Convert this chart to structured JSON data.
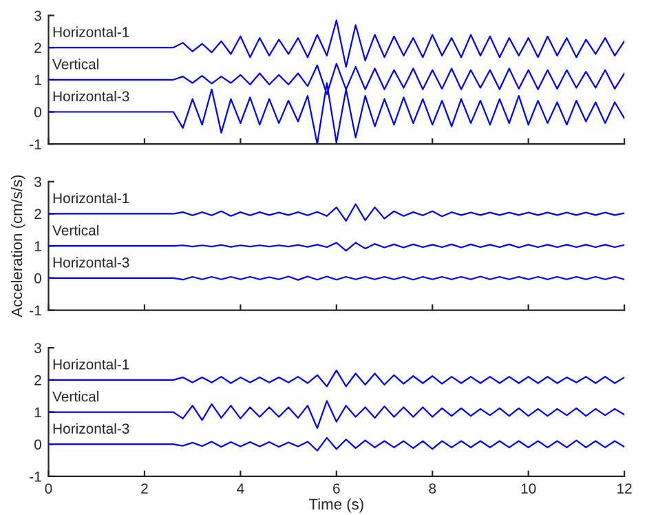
{
  "chart_data": [
    {
      "type": "line",
      "xlim": [
        0,
        12
      ],
      "xticks": [
        0,
        2,
        4,
        6,
        8,
        10,
        12
      ],
      "ylim": [
        -1,
        3
      ],
      "yticks": [
        -1,
        0,
        1,
        2,
        3
      ],
      "tick_labels": "y",
      "grid": false,
      "legend": false,
      "x": [
        0,
        2.6,
        2.8,
        3.0,
        3.2,
        3.4,
        3.6,
        3.8,
        4.0,
        4.2,
        4.4,
        4.6,
        4.8,
        5.0,
        5.2,
        5.4,
        5.6,
        5.8,
        6.0,
        6.2,
        6.4,
        6.6,
        6.8,
        7.0,
        7.2,
        7.4,
        7.6,
        7.8,
        8.0,
        8.2,
        8.4,
        8.6,
        8.8,
        9.0,
        9.2,
        9.4,
        9.6,
        9.8,
        10.0,
        10.2,
        10.4,
        10.6,
        10.8,
        11.0,
        11.2,
        11.4,
        11.6,
        11.8,
        12.0
      ],
      "series": [
        {
          "name": "Horizontal-1",
          "color": "#0000ff",
          "values": [
            2,
            2,
            2.15,
            1.88,
            2.12,
            1.85,
            2.2,
            1.8,
            2.35,
            1.7,
            2.3,
            1.75,
            2.25,
            1.8,
            2.3,
            1.7,
            2.4,
            1.75,
            2.85,
            1.4,
            2.7,
            1.6,
            2.4,
            1.7,
            2.35,
            1.75,
            2.3,
            1.7,
            2.4,
            1.75,
            2.3,
            1.7,
            2.4,
            1.75,
            2.35,
            1.7,
            2.3,
            1.75,
            2.3,
            1.7,
            2.35,
            1.75,
            2.3,
            1.7,
            2.25,
            1.8,
            2.3,
            1.75,
            2.2
          ]
        },
        {
          "name": "Vertical",
          "color": "#0000ff",
          "values": [
            1,
            1,
            1.1,
            0.9,
            1.12,
            0.88,
            1.1,
            0.9,
            1.15,
            0.85,
            1.2,
            0.85,
            1.15,
            0.85,
            1.2,
            0.8,
            1.45,
            0.55,
            1.5,
            0.7,
            1.4,
            0.7,
            1.35,
            0.7,
            1.3,
            0.75,
            1.35,
            0.7,
            1.3,
            0.72,
            1.35,
            0.7,
            1.3,
            0.75,
            1.3,
            0.7,
            1.35,
            0.72,
            1.3,
            0.7,
            1.3,
            0.72,
            1.3,
            0.75,
            1.25,
            0.75,
            1.3,
            0.72,
            1.2
          ]
        },
        {
          "name": "Horizontal-3",
          "color": "#0000ff",
          "values": [
            0,
            0,
            -0.5,
            0.4,
            -0.4,
            0.7,
            -0.65,
            0.4,
            -0.35,
            0.45,
            -0.4,
            0.4,
            -0.35,
            0.35,
            -0.3,
            0.5,
            -1.0,
            0.9,
            -0.95,
            0.7,
            -0.8,
            0.5,
            -0.45,
            0.4,
            -0.4,
            0.45,
            -0.35,
            0.4,
            -0.4,
            0.35,
            -0.45,
            0.4,
            -0.35,
            0.35,
            -0.4,
            0.4,
            -0.35,
            0.5,
            -0.4,
            0.35,
            -0.35,
            0.3,
            -0.4,
            0.35,
            -0.3,
            0.3,
            -0.35,
            0.3,
            -0.2
          ]
        }
      ]
    },
    {
      "type": "line",
      "ylabel": "Acceleration (cm/s/s)",
      "xlim": [
        0,
        12
      ],
      "xticks": [
        0,
        2,
        4,
        6,
        8,
        10,
        12
      ],
      "ylim": [
        -1,
        3
      ],
      "yticks": [
        -1,
        0,
        1,
        2,
        3
      ],
      "tick_labels": "y",
      "grid": false,
      "legend": false,
      "x": [
        0,
        2.6,
        2.8,
        3.0,
        3.2,
        3.4,
        3.6,
        3.8,
        4.0,
        4.2,
        4.4,
        4.6,
        4.8,
        5.0,
        5.2,
        5.4,
        5.6,
        5.8,
        6.0,
        6.2,
        6.4,
        6.6,
        6.8,
        7.0,
        7.2,
        7.4,
        7.6,
        7.8,
        8.0,
        8.2,
        8.4,
        8.6,
        8.8,
        9.0,
        9.2,
        9.4,
        9.6,
        9.8,
        10.0,
        10.2,
        10.4,
        10.6,
        10.8,
        11.0,
        11.2,
        11.4,
        11.6,
        11.8,
        12.0
      ],
      "series": [
        {
          "name": "Horizontal-1",
          "color": "#0000ff",
          "values": [
            2,
            2,
            2.05,
            1.95,
            2.05,
            1.95,
            2.08,
            1.93,
            2.05,
            1.95,
            2.05,
            1.96,
            2.04,
            1.96,
            2.05,
            1.95,
            2.06,
            1.93,
            2.2,
            1.78,
            2.3,
            1.8,
            2.2,
            1.85,
            2.08,
            1.93,
            2.05,
            1.95,
            2.08,
            1.92,
            2.05,
            1.96,
            2.04,
            1.96,
            2.04,
            1.96,
            2.04,
            1.96,
            2.04,
            1.96,
            2.04,
            1.96,
            2.04,
            1.96,
            2.04,
            1.96,
            2.04,
            1.96,
            2.02
          ]
        },
        {
          "name": "Vertical",
          "color": "#0000ff",
          "values": [
            1,
            1,
            1.02,
            0.98,
            1.02,
            0.98,
            1.03,
            0.97,
            1.02,
            0.98,
            1.02,
            0.98,
            1.02,
            0.98,
            1.03,
            0.97,
            1.04,
            0.96,
            1.1,
            0.85,
            1.1,
            0.92,
            1.06,
            0.95,
            1.05,
            0.95,
            1.05,
            0.96,
            1.04,
            0.96,
            1.05,
            0.95,
            1.05,
            0.96,
            1.04,
            0.96,
            1.05,
            0.95,
            1.04,
            0.96,
            1.04,
            0.96,
            1.04,
            0.96,
            1.04,
            0.96,
            1.04,
            0.96,
            1.03
          ]
        },
        {
          "name": "Horizontal-3",
          "color": "#0000ff",
          "values": [
            0,
            0,
            -0.05,
            0.04,
            -0.04,
            0.04,
            -0.04,
            0.04,
            -0.04,
            0.04,
            -0.04,
            0.03,
            -0.04,
            0.05,
            -0.06,
            0.05,
            -0.05,
            0.05,
            -0.05,
            0.04,
            -0.04,
            0.04,
            -0.04,
            0.04,
            -0.04,
            0.04,
            -0.05,
            0.04,
            -0.04,
            0.04,
            -0.04,
            0.04,
            -0.04,
            0.05,
            -0.04,
            0.04,
            -0.04,
            0.04,
            -0.04,
            0.04,
            -0.04,
            0.04,
            -0.04,
            0.04,
            -0.04,
            0.04,
            -0.04,
            0.04,
            -0.04
          ]
        }
      ]
    },
    {
      "type": "line",
      "xlabel": "Time (s)",
      "xlim": [
        0,
        12
      ],
      "xticks": [
        0,
        2,
        4,
        6,
        8,
        10,
        12
      ],
      "ylim": [
        -1,
        3
      ],
      "yticks": [
        -1,
        0,
        1,
        2,
        3
      ],
      "grid": false,
      "legend": false,
      "x": [
        0,
        2.6,
        2.8,
        3.0,
        3.2,
        3.4,
        3.6,
        3.8,
        4.0,
        4.2,
        4.4,
        4.6,
        4.8,
        5.0,
        5.2,
        5.4,
        5.6,
        5.8,
        6.0,
        6.2,
        6.4,
        6.6,
        6.8,
        7.0,
        7.2,
        7.4,
        7.6,
        7.8,
        8.0,
        8.2,
        8.4,
        8.6,
        8.8,
        9.0,
        9.2,
        9.4,
        9.6,
        9.8,
        10.0,
        10.2,
        10.4,
        10.6,
        10.8,
        11.0,
        11.2,
        11.4,
        11.6,
        11.8,
        12.0
      ],
      "series": [
        {
          "name": "Horizontal-1",
          "color": "#0000ff",
          "values": [
            2,
            2,
            2.08,
            1.92,
            2.08,
            1.92,
            2.1,
            1.9,
            2.08,
            1.92,
            2.08,
            1.92,
            2.08,
            1.92,
            2.1,
            1.9,
            2.15,
            1.8,
            2.3,
            1.8,
            2.2,
            1.85,
            2.2,
            1.85,
            2.15,
            1.88,
            2.12,
            1.9,
            2.12,
            1.88,
            2.1,
            1.9,
            2.1,
            1.9,
            2.1,
            1.9,
            2.1,
            1.9,
            2.1,
            1.9,
            2.1,
            1.9,
            2.08,
            1.92,
            2.1,
            1.9,
            2.1,
            1.9,
            2.08
          ]
        },
        {
          "name": "Vertical",
          "color": "#0000ff",
          "values": [
            1,
            1,
            0.8,
            1.2,
            0.75,
            1.25,
            0.82,
            1.2,
            0.8,
            1.15,
            0.85,
            1.15,
            0.85,
            1.15,
            0.82,
            1.2,
            0.5,
            1.35,
            0.7,
            1.2,
            0.85,
            1.15,
            0.82,
            1.18,
            0.85,
            1.15,
            0.85,
            1.15,
            0.85,
            1.12,
            0.88,
            1.12,
            0.88,
            1.1,
            0.9,
            1.12,
            0.88,
            1.12,
            0.88,
            1.1,
            0.88,
            1.1,
            0.9,
            1.12,
            0.88,
            1.1,
            0.9,
            1.1,
            0.92
          ]
        },
        {
          "name": "Horizontal-3",
          "color": "#0000ff",
          "values": [
            0,
            0,
            -0.05,
            0.05,
            -0.06,
            0.08,
            -0.08,
            0.07,
            -0.07,
            0.07,
            -0.07,
            0.07,
            -0.08,
            0.06,
            -0.07,
            0.08,
            -0.2,
            0.2,
            -0.15,
            0.15,
            -0.12,
            0.12,
            -0.1,
            0.1,
            -0.1,
            0.1,
            -0.12,
            0.1,
            -0.15,
            0.1,
            -0.1,
            0.1,
            -0.1,
            0.1,
            -0.1,
            0.1,
            -0.1,
            0.1,
            -0.1,
            0.1,
            -0.1,
            0.1,
            -0.1,
            0.12,
            -0.1,
            0.1,
            -0.1,
            0.1,
            -0.08
          ]
        }
      ]
    }
  ]
}
